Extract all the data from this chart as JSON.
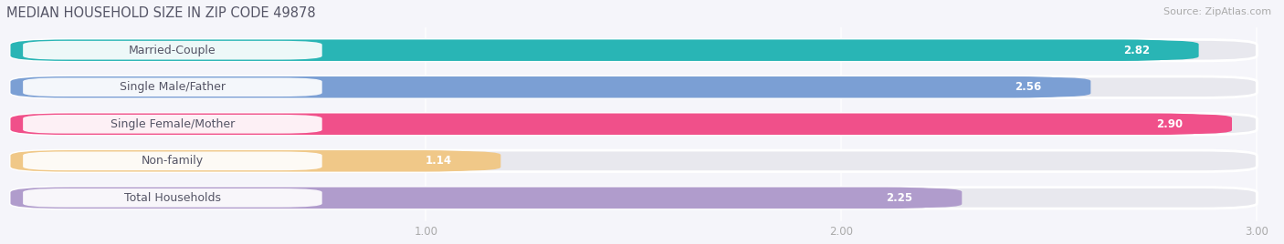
{
  "title": "MEDIAN HOUSEHOLD SIZE IN ZIP CODE 49878",
  "source": "Source: ZipAtlas.com",
  "categories": [
    "Married-Couple",
    "Single Male/Father",
    "Single Female/Mother",
    "Non-family",
    "Total Households"
  ],
  "values": [
    2.82,
    2.56,
    2.9,
    1.14,
    2.25
  ],
  "bar_colors": [
    "#29b5b5",
    "#7b9fd4",
    "#f0508a",
    "#f0c888",
    "#b09ccc"
  ],
  "xlim": [
    0,
    3.0
  ],
  "xticks": [
    1.0,
    2.0,
    3.0
  ],
  "background_color": "#f5f5fa",
  "bar_bg_color": "#e8e8ee",
  "title_fontsize": 10.5,
  "source_fontsize": 8,
  "label_fontsize": 9,
  "value_fontsize": 8.5
}
